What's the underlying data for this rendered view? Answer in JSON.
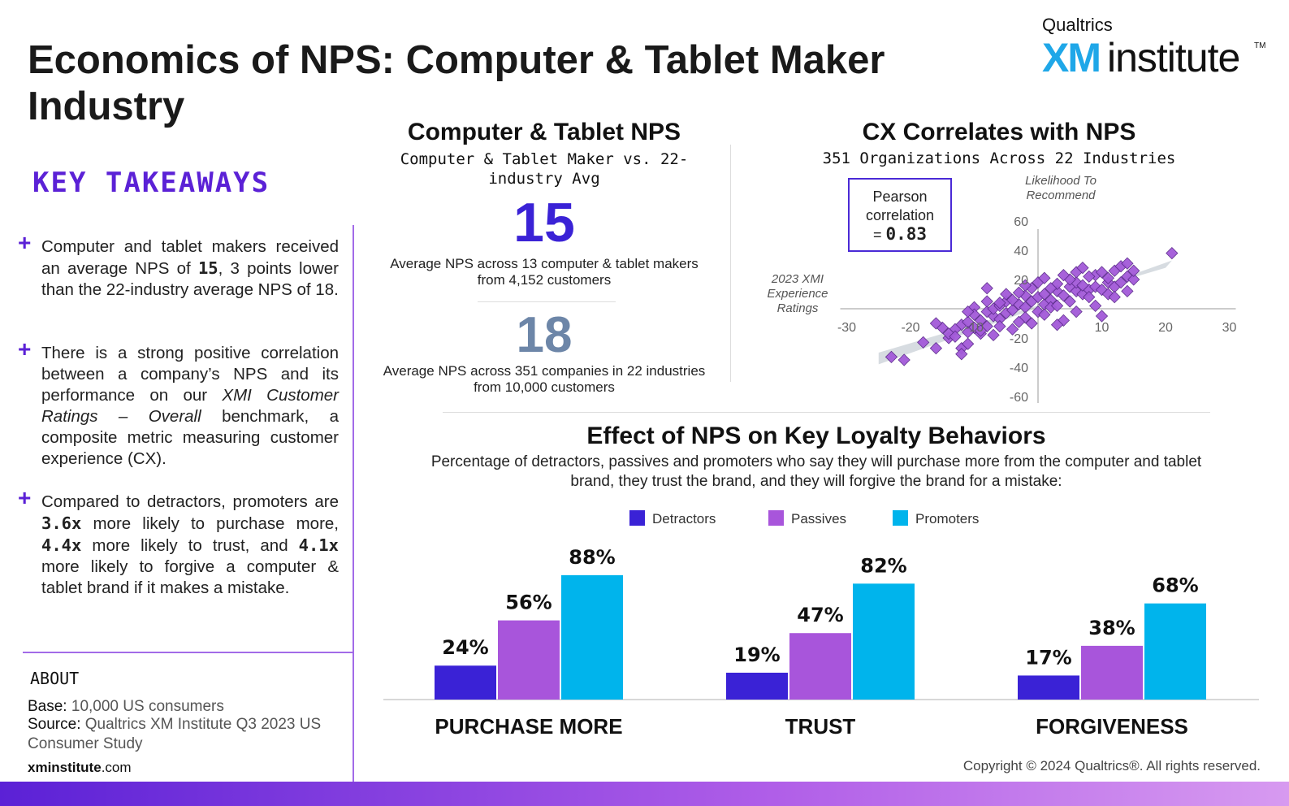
{
  "title": "Economics of NPS: Computer & Tablet Maker Industry",
  "logo": {
    "brand": "Qualtrics",
    "xm": "XM",
    "institute": "institute",
    "tm": "TM"
  },
  "colors": {
    "accent": "#5b21d6",
    "detractors": "#3a22d6",
    "passives": "#a855db",
    "promoters": "#00b4ec",
    "scatter": "#a35ad9"
  },
  "takeaways": {
    "heading": "KEY TAKEAWAYS",
    "t1": {
      "a": "Computer and tablet makers received an average NPS of ",
      "b": "15",
      "c": ", 3 points lower than the 22-industry average NPS of 18."
    },
    "t2": {
      "a": " There is a strong positive correlation between a company’s NPS and its performance on our ",
      "b": "XMI Customer Ratings – Overall",
      "c": " benchmark, a composite metric measuring customer experience (CX)."
    },
    "t3": {
      "a": "Compared to detractors, promoters are ",
      "b": "3.6x",
      "c": " more likely to purchase more, ",
      "d": "4.4x",
      "e": " more likely to trust, and ",
      "f": "4.1x",
      "g": " more likely to forgive a computer & tablet brand if it makes a mistake."
    }
  },
  "about": {
    "title": "ABOUT",
    "base_label": "Base:",
    "base": " 10,000 US consumers",
    "source_label": "Source:",
    "source": " Qualtrics XM Institute Q3 2023 US Consumer Study",
    "url_bold": "xminstitute",
    "url_rest": ".com"
  },
  "copyright": "Copyright © 2024 Qualtrics®. All rights reserved.",
  "nps": {
    "title": "Computer & Tablet NPS",
    "subtitle": "Computer & Tablet Maker vs. 22-industry Avg",
    "industry_value": "15",
    "industry_desc": "Average NPS across 13 computer & tablet makers from 4,152 customers",
    "avg_value": "18",
    "avg_desc": "Average NPS across 351 companies in 22 industries from 10,000 customers"
  },
  "cx": {
    "title": "CX Correlates with NPS",
    "subtitle": "351 Organizations Across 22 Industries",
    "pearson_label": "Pearson correlation",
    "pearson_value": "0.83",
    "pearson_prefix": "="
  },
  "loyalty": {
    "title": "Effect of NPS on Key Loyalty Behaviors",
    "subtitle": "Percentage of detractors, passives and promoters who say they will purchase more from the computer and tablet brand, they trust the brand, and they will forgive the brand for a mistake:"
  },
  "chart_data": [
    {
      "type": "scatter",
      "title": "CX Correlates with NPS",
      "xlabel": "2023 XMI Experience Ratings",
      "ylabel": "Likelihood To Recommend",
      "xlim": [
        -30,
        30
      ],
      "ylim": [
        -60,
        60
      ],
      "xticks": [
        -30,
        -20,
        -10,
        10,
        20,
        30
      ],
      "yticks": [
        60,
        40,
        20,
        -20,
        -40,
        -60
      ],
      "highlight_band": true,
      "points": [
        [
          -23,
          -33
        ],
        [
          -21,
          -35
        ],
        [
          -18,
          -23
        ],
        [
          -16,
          -27
        ],
        [
          -14,
          -20
        ],
        [
          -12,
          -27
        ],
        [
          -11,
          -24
        ],
        [
          -10,
          1
        ],
        [
          -9,
          -17
        ],
        [
          -12,
          -11
        ],
        [
          -11,
          -9
        ],
        [
          -13,
          -14
        ],
        [
          -14,
          -17
        ],
        [
          -8,
          -12
        ],
        [
          -7,
          -5
        ],
        [
          -9,
          -8
        ],
        [
          -10,
          -4
        ],
        [
          -8,
          -2
        ],
        [
          -6,
          -7
        ],
        [
          -5,
          -3
        ],
        [
          -7,
          0
        ],
        [
          -6,
          2
        ],
        [
          -4,
          -1
        ],
        [
          -3,
          3
        ],
        [
          -5,
          5
        ],
        [
          -2,
          1
        ],
        [
          -4,
          6
        ],
        [
          -1,
          5
        ],
        [
          0,
          8
        ],
        [
          1,
          3
        ],
        [
          -2,
          9
        ],
        [
          1,
          10
        ],
        [
          2,
          6
        ],
        [
          3,
          12
        ],
        [
          0,
          -2
        ],
        [
          2,
          1
        ],
        [
          4,
          9
        ],
        [
          5,
          15
        ],
        [
          3,
          17
        ],
        [
          6,
          12
        ],
        [
          5,
          5
        ],
        [
          7,
          10
        ],
        [
          8,
          13
        ],
        [
          6,
          18
        ],
        [
          9,
          15
        ],
        [
          8,
          8
        ],
        [
          10,
          13
        ],
        [
          11,
          18
        ],
        [
          9,
          23
        ],
        [
          12,
          15
        ],
        [
          11,
          21
        ],
        [
          13,
          18
        ],
        [
          12,
          26
        ],
        [
          14,
          22
        ],
        [
          13,
          29
        ],
        [
          15,
          20
        ],
        [
          14,
          31
        ],
        [
          10,
          -5
        ],
        [
          8,
          22
        ],
        [
          6,
          25
        ],
        [
          -12,
          -31
        ],
        [
          -11,
          -2
        ],
        [
          -15,
          -13
        ],
        [
          21,
          38
        ],
        [
          -3,
          11
        ],
        [
          -1,
          14
        ],
        [
          -2,
          -6
        ],
        [
          1,
          -4
        ],
        [
          3,
          2
        ],
        [
          4,
          -8
        ],
        [
          -6,
          -12
        ],
        [
          7,
          16
        ],
        [
          -8,
          5
        ],
        [
          -3,
          -9
        ],
        [
          2,
          14
        ],
        [
          5,
          20
        ],
        [
          0,
          18
        ],
        [
          -5,
          10
        ],
        [
          9,
          2
        ],
        [
          -10,
          -13
        ],
        [
          4,
          23
        ],
        [
          7,
          28
        ],
        [
          -7,
          -18
        ],
        [
          -9,
          -15
        ],
        [
          6,
          -2
        ],
        [
          3,
          -11
        ],
        [
          11,
          10
        ],
        [
          -1,
          -10
        ],
        [
          -4,
          -14
        ],
        [
          12,
          8
        ],
        [
          -13,
          -19
        ],
        [
          -6,
          4
        ],
        [
          -16,
          -10
        ],
        [
          14,
          12
        ],
        [
          15,
          26
        ],
        [
          1,
          21
        ],
        [
          -2,
          16
        ],
        [
          10,
          25
        ],
        [
          -8,
          14
        ],
        [
          -11,
          -16
        ]
      ]
    },
    {
      "type": "bar",
      "title": "Effect of NPS on Key Loyalty Behaviors",
      "categories": [
        "PURCHASE MORE",
        "TRUST",
        "FORGIVENESS"
      ],
      "series": [
        {
          "name": "Detractors",
          "values": [
            24,
            19,
            17
          ]
        },
        {
          "name": "Passives",
          "values": [
            56,
            47,
            38
          ]
        },
        {
          "name": "Promoters",
          "values": [
            88,
            82,
            68
          ]
        }
      ],
      "value_suffix": "%",
      "ylim": [
        0,
        100
      ]
    }
  ]
}
